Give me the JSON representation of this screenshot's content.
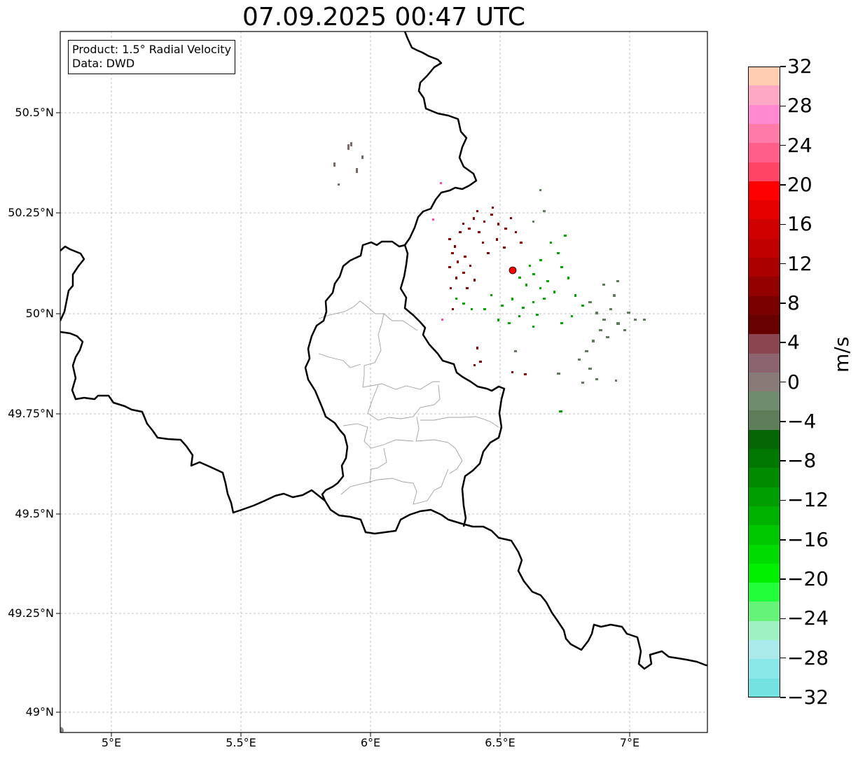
{
  "title": "07.09.2025 00:47 UTC",
  "info_box": {
    "product": "Product: 1.5° Radial Velocity",
    "source": "Data: DWD"
  },
  "map": {
    "lon_range": [
      4.8,
      7.3
    ],
    "lat_range": [
      48.95,
      50.7
    ],
    "lat_ticks": [
      "50.5°N",
      "50.25°N",
      "50°N",
      "49.75°N",
      "49.5°N",
      "49.25°N",
      "49°N"
    ],
    "lon_ticks": [
      "5°E",
      "5.5°E",
      "6°E",
      "6.5°E",
      "7°E"
    ],
    "gridlines": true,
    "radar_site_color": "#ff0000"
  },
  "colorbar": {
    "unit": "m/s",
    "tick_labels": [
      "32",
      "28",
      "24",
      "20",
      "16",
      "12",
      "8",
      "4",
      "0",
      "−4",
      "−8",
      "−12",
      "−16",
      "−20",
      "−24",
      "−28",
      "−32"
    ],
    "colors_top_to_bottom": [
      "#ffcdb0",
      "#ffa8c5",
      "#ff88d0",
      "#ff7aa8",
      "#ff5f8a",
      "#ff4466",
      "#ff0000",
      "#e60000",
      "#d00000",
      "#c00000",
      "#aa0000",
      "#920000",
      "#7a0000",
      "#680000",
      "#8a4550",
      "#8c6470",
      "#877a77",
      "#6e8c6e",
      "#5e7e5a",
      "#066606",
      "#007700",
      "#008a00",
      "#009e00",
      "#00b200",
      "#00c800",
      "#00dc00",
      "#00f000",
      "#22ff3a",
      "#66f37a",
      "#9ff0c3",
      "#aaeaea",
      "#8ae8e8",
      "#75e2e2"
    ]
  }
}
